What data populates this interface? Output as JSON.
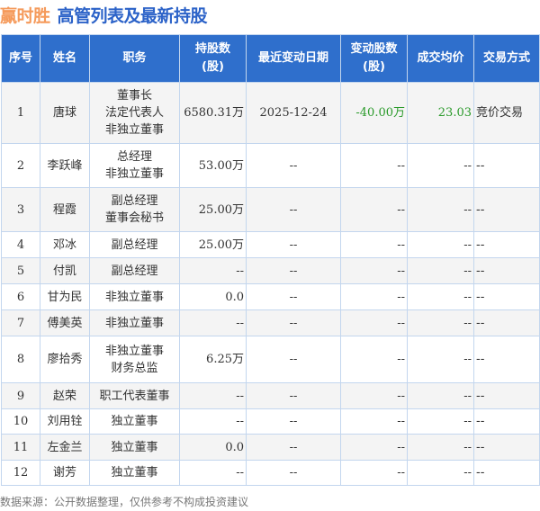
{
  "header": {
    "company": "赢时胜",
    "title": "高管列表及最新持股"
  },
  "columns": [
    "序号",
    "姓名",
    "职务",
    "持股数\n(股)",
    "最近变动日期",
    "变动股数\n(股)",
    "成交均价",
    "交易方式"
  ],
  "rows": [
    {
      "no": "1",
      "name": "唐球",
      "role": "董事长\n法定代表人\n非独立董事",
      "shares": "6580.31万",
      "date": "2025-12-24",
      "change": "-40.00万",
      "price": "23.03",
      "method": "竞价交易"
    },
    {
      "no": "2",
      "name": "李跃峰",
      "role": "总经理\n非独立董事",
      "shares": "53.00万",
      "date": "--",
      "change": "--",
      "price": "--",
      "method": "--"
    },
    {
      "no": "3",
      "name": "程霞",
      "role": "副总经理\n董事会秘书",
      "shares": "25.00万",
      "date": "--",
      "change": "--",
      "price": "--",
      "method": "--"
    },
    {
      "no": "4",
      "name": "邓冰",
      "role": "副总经理",
      "shares": "25.00万",
      "date": "--",
      "change": "--",
      "price": "--",
      "method": "--"
    },
    {
      "no": "5",
      "name": "付凯",
      "role": "副总经理",
      "shares": "--",
      "date": "--",
      "change": "--",
      "price": "--",
      "method": "--"
    },
    {
      "no": "6",
      "name": "甘为民",
      "role": "非独立董事",
      "shares": "0.0",
      "date": "--",
      "change": "--",
      "price": "--",
      "method": "--"
    },
    {
      "no": "7",
      "name": "傅美英",
      "role": "非独立董事",
      "shares": "--",
      "date": "--",
      "change": "--",
      "price": "--",
      "method": "--"
    },
    {
      "no": "8",
      "name": "廖拾秀",
      "role": "非独立董事\n财务总监",
      "shares": "6.25万",
      "date": "--",
      "change": "--",
      "price": "--",
      "method": "--"
    },
    {
      "no": "9",
      "name": "赵荣",
      "role": "职工代表董事",
      "shares": "--",
      "date": "--",
      "change": "--",
      "price": "--",
      "method": "--"
    },
    {
      "no": "10",
      "name": "刘用铨",
      "role": "独立董事",
      "shares": "--",
      "date": "--",
      "change": "--",
      "price": "--",
      "method": "--"
    },
    {
      "no": "11",
      "name": "左金兰",
      "role": "独立董事",
      "shares": "0.0",
      "date": "--",
      "change": "--",
      "price": "--",
      "method": "--"
    },
    {
      "no": "12",
      "name": "谢芳",
      "role": "独立董事",
      "shares": "--",
      "date": "--",
      "change": "--",
      "price": "--",
      "method": "--"
    }
  ],
  "colors": {
    "header_bg": "#2f6fcc",
    "company": "#f59a5b",
    "title": "#2b62c8",
    "negative": "#2a9a2a"
  },
  "footer": "数据来源：公开数据整理，仅供参考不构成投资建议"
}
